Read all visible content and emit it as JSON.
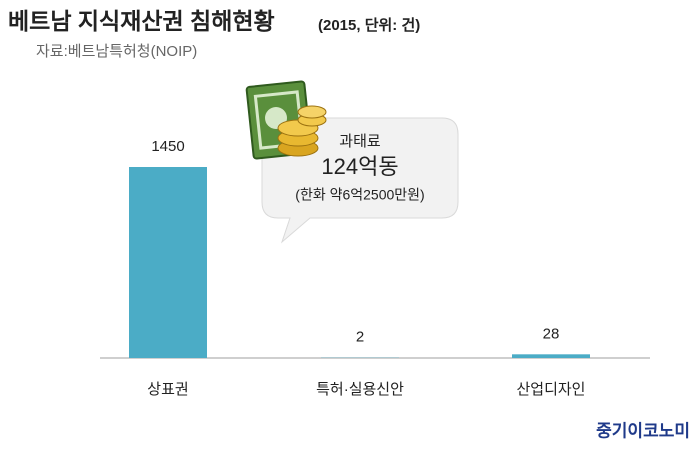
{
  "chart_data": {
    "type": "bar",
    "title": "베트남 지식재산권 침해현황",
    "subtitle": "(2015, 단위: 건)",
    "source": "자료:베트남특허청(NOIP)",
    "categories": [
      "상표권",
      "특허·실용신안",
      "산업디자인"
    ],
    "values": [
      1450,
      2,
      28
    ],
    "color": "#4bacc6",
    "annotation": {
      "label": "과태료",
      "amount": "124억동",
      "note": "(한화 약6억2500만원)"
    }
  },
  "brand": "중기이코노미"
}
